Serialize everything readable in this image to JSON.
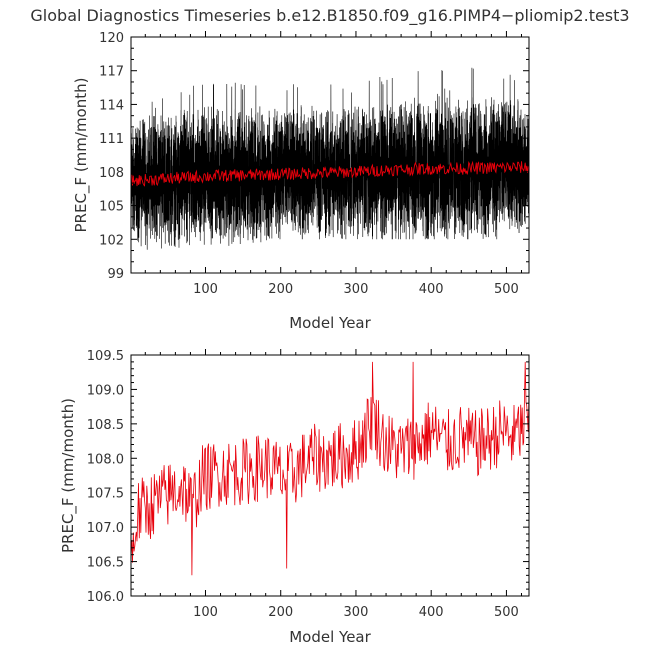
{
  "title": "Global Diagnostics Timeseries b.e12.B1850.f09_g16.PIMP4−pliomip2.test3",
  "chart_data": [
    {
      "type": "line",
      "xlabel": "Model Year",
      "ylabel": "PREC_F (mm/month)",
      "xlim": [
        1,
        530
      ],
      "ylim": [
        99,
        120
      ],
      "xticks": [
        100,
        200,
        300,
        400,
        500
      ],
      "yticks": [
        99,
        102,
        105,
        108,
        111,
        114,
        117,
        120
      ],
      "ytick_labels": [
        "99",
        "102",
        "105",
        "108",
        "111",
        "114",
        "117",
        "120"
      ],
      "series": [
        {
          "role": "monthly",
          "color": "#000000",
          "note_values": "monthly values, ~6360 points, fluctuating roughly between 100 and 118 around the annual mean",
          "envelope": {
            "x": [
              1,
              100,
              200,
              300,
              400,
              500,
              530
            ],
            "low": [
              101,
              101,
              102,
              102,
              102,
              102,
              103
            ],
            "high": [
              114,
              116,
              116,
              116,
              118,
              117,
              116
            ]
          }
        },
        {
          "role": "annual",
          "color": "#e8000b",
          "x": [
            1,
            50,
            100,
            150,
            200,
            250,
            300,
            350,
            400,
            450,
            500,
            530
          ],
          "values": [
            107.2,
            107.4,
            107.6,
            107.7,
            107.8,
            107.9,
            108.0,
            108.2,
            108.3,
            108.3,
            108.4,
            108.4
          ]
        }
      ]
    },
    {
      "type": "line",
      "xlabel": "Model Year",
      "ylabel": "PREC_F (mm/month)",
      "xlim": [
        1,
        530
      ],
      "ylim": [
        106.0,
        109.5
      ],
      "xticks": [
        100,
        200,
        300,
        400,
        500
      ],
      "yticks": [
        106.0,
        106.5,
        107.0,
        107.5,
        108.0,
        108.5,
        109.0,
        109.5
      ],
      "ytick_labels": [
        "106.0",
        "106.5",
        "107.0",
        "107.5",
        "108.0",
        "108.5",
        "109.0",
        "109.5"
      ],
      "series": [
        {
          "role": "annual",
          "color": "#e8000b",
          "x": [
            1,
            10,
            25,
            40,
            55,
            70,
            82,
            95,
            120,
            150,
            180,
            208,
            240,
            270,
            300,
            322,
            340,
            360,
            380,
            400,
            420,
            440,
            460,
            480,
            495,
            510,
            525
          ],
          "values": [
            106.5,
            107.2,
            107.3,
            107.4,
            107.5,
            107.6,
            107.3,
            107.7,
            107.8,
            107.8,
            107.9,
            107.7,
            108.0,
            108.0,
            108.1,
            108.6,
            108.2,
            108.1,
            108.2,
            108.4,
            108.2,
            108.3,
            108.2,
            108.3,
            108.4,
            108.3,
            108.5
          ],
          "highlights": [
            {
              "x": 82,
              "value": 106.3
            },
            {
              "x": 208,
              "value": 106.4
            },
            {
              "x": 322,
              "value": 109.4
            },
            {
              "x": 376,
              "value": 109.4
            },
            {
              "x": 525,
              "value": 109.4
            }
          ]
        }
      ]
    }
  ]
}
